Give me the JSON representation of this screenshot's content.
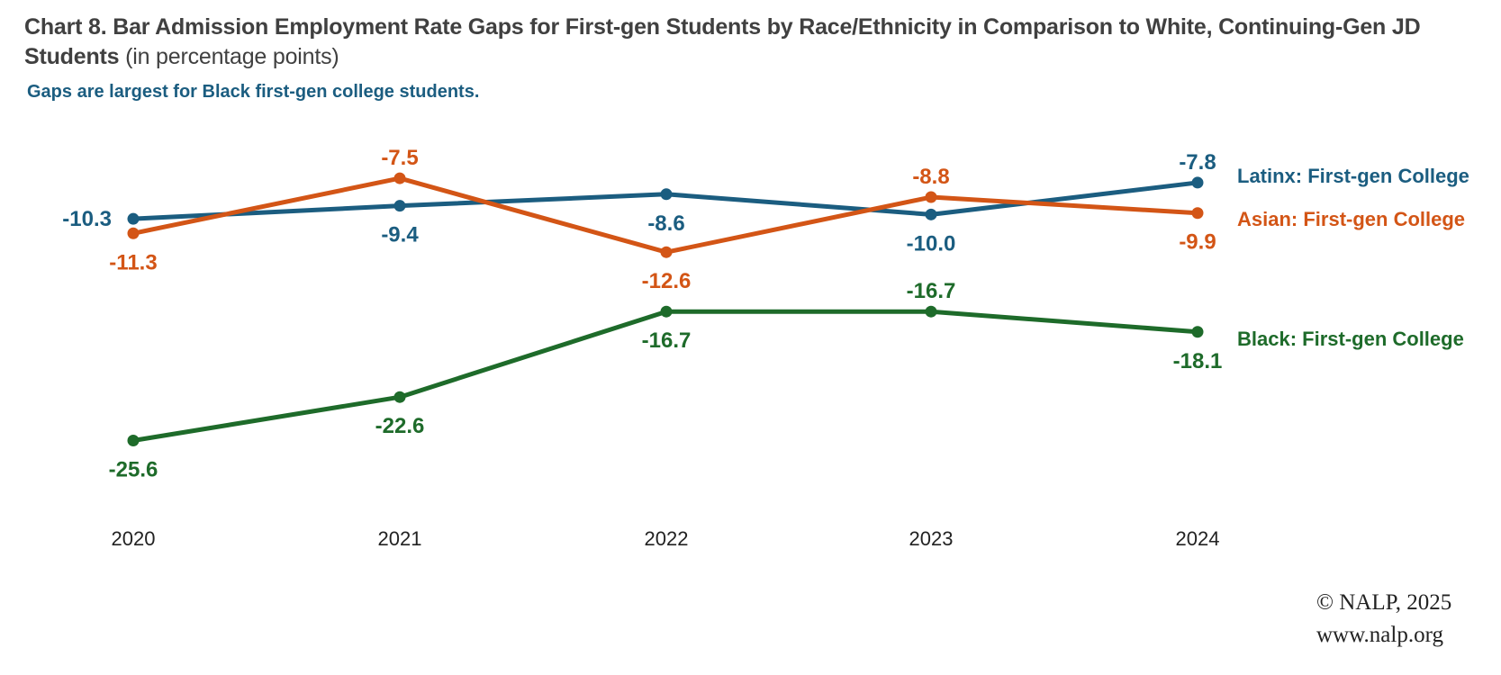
{
  "title": {
    "main": "Chart 8. Bar Admission Employment Rate Gaps for First-gen Students by Race/Ethnicity in Comparison to White, Continuing-Gen JD Students",
    "unit": "(in percentage points)"
  },
  "subtitle": "Gaps are largest for Black first-gen college students.",
  "credit": {
    "copyright": "© NALP, 2025",
    "url": "www.nalp.org"
  },
  "chart_data": {
    "type": "line",
    "x": [
      "2020",
      "2021",
      "2022",
      "2023",
      "2024"
    ],
    "ylim": [
      -28,
      -6
    ],
    "grid": false,
    "legend_position": "right",
    "series": [
      {
        "name": "Latinx: First-gen College",
        "color": "#1b5d80",
        "values": [
          -10.3,
          -9.4,
          -8.6,
          -10.0,
          -7.8
        ],
        "labels": [
          "-10.3",
          "-9.4",
          "-8.6",
          "-10.0",
          "-7.8"
        ],
        "label_pos": [
          "left",
          "below",
          "below",
          "below",
          "above"
        ]
      },
      {
        "name": "Asian: First-gen College",
        "color": "#d35516",
        "values": [
          -11.3,
          -7.5,
          -12.6,
          -8.8,
          -9.9
        ],
        "labels": [
          "-11.3",
          "-7.5",
          "-12.6",
          "-8.8",
          "-9.9"
        ],
        "label_pos": [
          "below",
          "above",
          "below",
          "above",
          "below"
        ]
      },
      {
        "name": "Black: First-gen College",
        "color": "#1e6b2a",
        "values": [
          -25.6,
          -22.6,
          -16.7,
          -16.7,
          -18.1
        ],
        "labels": [
          "-25.6",
          "-22.6",
          "-16.7",
          "-16.7",
          "-18.1"
        ],
        "label_pos": [
          "below",
          "below",
          "below",
          "above",
          "below"
        ]
      }
    ]
  }
}
